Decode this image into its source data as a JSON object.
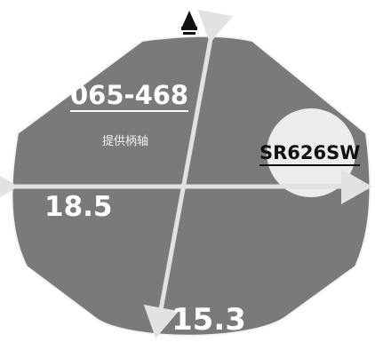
{
  "watch": {
    "model_code": "065-468",
    "model_subtitle": "提供柄轴",
    "battery": "SR626SW",
    "width_mm": "18.5",
    "height_mm": "15.3",
    "case_color": "#7a7a7a",
    "battery_color": "#ececec",
    "arrow_color": "#e2e2e2",
    "crown_icon": "crown-icon"
  }
}
